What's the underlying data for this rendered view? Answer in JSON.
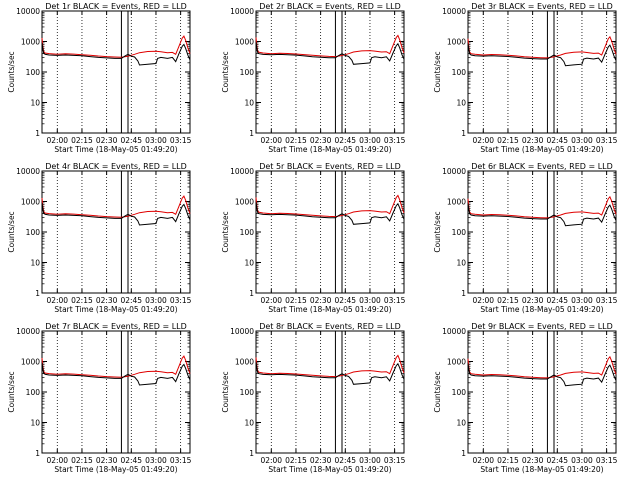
{
  "figure": {
    "y_ticks": [
      "1",
      "10",
      "100",
      "1000",
      "10000"
    ],
    "x_ticks": [
      "02:00",
      "02:15",
      "02:30",
      "02:45",
      "03:00",
      "03:15"
    ],
    "ylabel": "Counts/sec",
    "xlabel": "Start Time (18-May-05 01:49:20)"
  },
  "chart_data": [
    {
      "type": "line",
      "title": "Det 1r BLACK = Events, RED = LLD",
      "variant": "left"
    },
    {
      "type": "line",
      "title": "Det 2r BLACK = Events, RED = LLD",
      "variant": "mid"
    },
    {
      "type": "line",
      "title": "Det 3r BLACK = Events, RED = LLD",
      "variant": "right"
    },
    {
      "type": "line",
      "title": "Det 4r BLACK = Events, RED = LLD",
      "variant": "left"
    },
    {
      "type": "line",
      "title": "Det 5r BLACK = Events, RED = LLD",
      "variant": "mid"
    },
    {
      "type": "line",
      "title": "Det 6r BLACK = Events, RED = LLD",
      "variant": "right"
    },
    {
      "type": "line",
      "title": "Det 7r BLACK = Events, RED = LLD",
      "variant": "left"
    },
    {
      "type": "line",
      "title": "Det 8r BLACK = Events, RED = LLD",
      "variant": "mid"
    },
    {
      "type": "line",
      "title": "Det 9r BLACK = Events, RED = LLD",
      "variant": "right"
    }
  ],
  "common": {
    "xlim_minutes": [
      -9.3,
      80.7
    ],
    "x_tick_minutes": [
      0,
      15,
      30,
      45,
      60,
      75
    ],
    "ylim": [
      1,
      10000
    ],
    "scale": "log",
    "black_color": "#000000",
    "red_color": "#e00000",
    "vlines_solid_minutes": [
      39,
      43
    ],
    "vlines_dotted_minutes": [
      0,
      15,
      30,
      45,
      60,
      75
    ],
    "events_black": [
      [
        -9.3,
        900
      ],
      [
        -8.8,
        600
      ],
      [
        -8.3,
        420
      ],
      [
        -7.5,
        380
      ],
      [
        -5,
        360
      ],
      [
        0,
        350
      ],
      [
        5,
        360
      ],
      [
        10,
        350
      ],
      [
        15,
        340
      ],
      [
        20,
        320
      ],
      [
        25,
        300
      ],
      [
        30,
        290
      ],
      [
        35,
        280
      ],
      [
        39,
        280
      ],
      [
        41,
        330
      ],
      [
        43,
        380
      ],
      [
        45,
        330
      ],
      [
        47,
        310
      ],
      [
        49,
        230
      ],
      [
        50,
        170
      ],
      [
        55,
        180
      ],
      [
        60,
        190
      ],
      [
        61,
        280
      ],
      [
        63,
        300
      ],
      [
        67,
        280
      ],
      [
        70,
        300
      ],
      [
        72,
        220
      ],
      [
        74,
        400
      ],
      [
        76,
        700
      ],
      [
        77,
        800
      ],
      [
        78,
        600
      ],
      [
        79.5,
        350
      ],
      [
        80.7,
        250
      ]
    ],
    "lld_red": [
      [
        -9.3,
        1300
      ],
      [
        -8.8,
        700
      ],
      [
        -8.3,
        480
      ],
      [
        -7.5,
        420
      ],
      [
        -5,
        400
      ],
      [
        0,
        380
      ],
      [
        5,
        395
      ],
      [
        10,
        385
      ],
      [
        15,
        370
      ],
      [
        20,
        355
      ],
      [
        25,
        335
      ],
      [
        30,
        320
      ],
      [
        35,
        310
      ],
      [
        39,
        305
      ],
      [
        43,
        330
      ],
      [
        47,
        380
      ],
      [
        50,
        430
      ],
      [
        55,
        470
      ],
      [
        60,
        480
      ],
      [
        63,
        460
      ],
      [
        67,
        430
      ],
      [
        70,
        440
      ],
      [
        72,
        380
      ],
      [
        74,
        700
      ],
      [
        76,
        1300
      ],
      [
        77,
        1500
      ],
      [
        78,
        1100
      ],
      [
        79.5,
        600
      ],
      [
        80.7,
        400
      ]
    ]
  }
}
